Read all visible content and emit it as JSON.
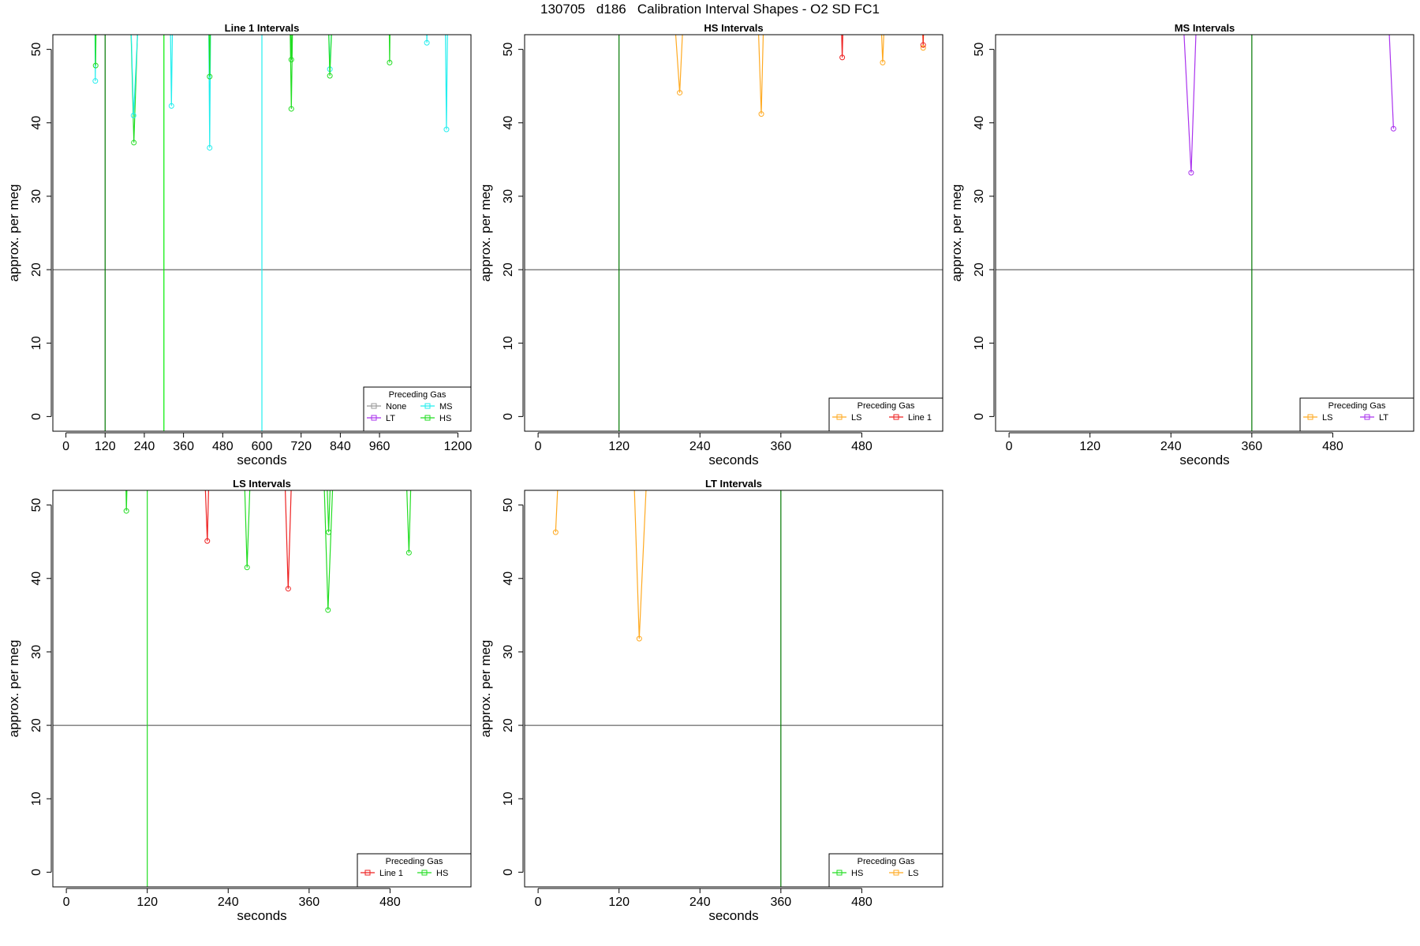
{
  "page_title": "130705   d186   Calibration Interval Shapes - O2 SD FC1",
  "chart_data": [
    {
      "type": "line",
      "title": "Line 1 Intervals",
      "xlabel": "seconds",
      "ylabel": "approx. per meg",
      "xlim": [
        -40,
        1240
      ],
      "ylim": [
        -2,
        52
      ],
      "xticks": [
        0,
        120,
        240,
        360,
        480,
        600,
        720,
        840,
        960,
        1200
      ],
      "yticks": [
        0,
        10,
        20,
        30,
        40,
        50
      ],
      "hline": 20,
      "vlines": [
        {
          "x": 120,
          "color": "#007700"
        },
        {
          "x": 300,
          "color": "#00ee00"
        },
        {
          "x": 600,
          "color": "#22eeee"
        }
      ],
      "legend": {
        "title": "Preceding Gas",
        "position": "bottom-right",
        "columns": 2,
        "entries": [
          {
            "name": "None",
            "color": "#999999"
          },
          {
            "name": "MS",
            "color": "#22eeee"
          },
          {
            "name": "LT",
            "color": "#aa33ee"
          },
          {
            "name": "HS",
            "color": "#22dd22"
          }
        ]
      },
      "series": [
        {
          "name": "MS",
          "color": "#22eeee",
          "points": [
            [
              88,
              60
            ],
            [
              90,
              45.7
            ],
            [
              92,
              60
            ]
          ]
        },
        {
          "name": "HS",
          "color": "#22dd22",
          "points": [
            [
              88,
              60
            ],
            [
              91,
              47.8
            ],
            [
              94,
              60
            ]
          ]
        },
        {
          "name": "HS",
          "color": "#22dd22",
          "points": [
            [
              195,
              60
            ],
            [
              208,
              37.3
            ],
            [
              225,
              60
            ]
          ]
        },
        {
          "name": "MS",
          "color": "#22eeee",
          "points": [
            [
              195,
              60
            ],
            [
              207,
              41
            ],
            [
              228,
              60
            ]
          ]
        },
        {
          "name": "MS",
          "color": "#22eeee",
          "points": [
            [
              318,
              60
            ],
            [
              323,
              42.3
            ],
            [
              328,
              60
            ]
          ]
        },
        {
          "name": "MS",
          "color": "#22eeee",
          "points": [
            [
              436,
              60
            ],
            [
              440,
              36.6
            ],
            [
              444,
              60
            ]
          ]
        },
        {
          "name": "HS",
          "color": "#22dd22",
          "points": [
            [
              436,
              60
            ],
            [
              440,
              46.3
            ],
            [
              444,
              60
            ]
          ]
        },
        {
          "name": "HS",
          "color": "#22dd22",
          "points": [
            [
              684,
              60
            ],
            [
              690,
              41.9
            ],
            [
              696,
              60
            ]
          ]
        },
        {
          "name": "HS",
          "color": "#22dd22",
          "points": [
            [
              684,
              60
            ],
            [
              690,
              48.6
            ],
            [
              696,
              60
            ]
          ]
        },
        {
          "name": "MS",
          "color": "#22eeee",
          "points": [
            [
              800,
              60
            ],
            [
              808,
              47.3
            ],
            [
              820,
              60
            ]
          ]
        },
        {
          "name": "HS",
          "color": "#22dd22",
          "points": [
            [
              800,
              60
            ],
            [
              808,
              46.4
            ],
            [
              820,
              60
            ]
          ]
        },
        {
          "name": "HS",
          "color": "#22dd22",
          "points": [
            [
              988,
              60
            ],
            [
              991,
              48.2
            ],
            [
              994,
              60
            ]
          ]
        },
        {
          "name": "MS",
          "color": "#22eeee",
          "points": [
            [
              1102,
              60
            ],
            [
              1105,
              50.9
            ],
            [
              1108,
              60
            ]
          ]
        },
        {
          "name": "MS",
          "color": "#22eeee",
          "points": [
            [
              1160,
              60
            ],
            [
              1165,
              39.1
            ],
            [
              1170,
              60
            ]
          ]
        }
      ]
    },
    {
      "type": "line",
      "title": "HS Intervals",
      "xlabel": "seconds",
      "ylabel": "approx. per meg",
      "xlim": [
        -20,
        600
      ],
      "ylim": [
        -2,
        52
      ],
      "xticks": [
        0,
        120,
        240,
        360,
        480
      ],
      "yticks": [
        0,
        10,
        20,
        30,
        40,
        50
      ],
      "hline": 20,
      "vlines": [
        {
          "x": 120,
          "color": "#007700"
        }
      ],
      "legend": {
        "title": "Preceding Gas",
        "position": "bottom-right",
        "columns": 2,
        "entries": [
          {
            "name": "LS",
            "color": "#ffaa22"
          },
          {
            "name": "Line 1",
            "color": "#ee2222"
          }
        ]
      },
      "series": [
        {
          "name": "LS",
          "color": "#ffaa22",
          "points": [
            [
              198,
              60
            ],
            [
              210,
              44.1
            ],
            [
              218,
              60
            ]
          ]
        },
        {
          "name": "LS",
          "color": "#ffaa22",
          "points": [
            [
              324,
              60
            ],
            [
              331,
              41.2
            ],
            [
              336,
              60
            ]
          ]
        },
        {
          "name": "Line 1",
          "color": "#ee2222",
          "points": [
            [
              448,
              60
            ],
            [
              451,
              48.9
            ],
            [
              454,
              60
            ]
          ]
        },
        {
          "name": "LS",
          "color": "#ffaa22",
          "points": [
            [
              506,
              60
            ],
            [
              511,
              48.2
            ],
            [
              516,
              60
            ]
          ]
        },
        {
          "name": "LS",
          "color": "#ffaa22",
          "points": [
            [
              568,
              60
            ],
            [
              571,
              50.2
            ],
            [
              574,
              60
            ]
          ]
        },
        {
          "name": "Line 1",
          "color": "#ee2222",
          "points": [
            [
              569,
              60
            ],
            [
              571,
              50.6
            ],
            [
              573,
              60
            ]
          ]
        }
      ]
    },
    {
      "type": "line",
      "title": "MS Intervals",
      "xlabel": "seconds",
      "ylabel": "approx. per meg",
      "xlim": [
        -20,
        600
      ],
      "ylim": [
        -2,
        52
      ],
      "xticks": [
        0,
        120,
        240,
        360,
        480
      ],
      "yticks": [
        0,
        10,
        20,
        30,
        40,
        50
      ],
      "hline": 20,
      "vlines": [
        {
          "x": 360,
          "color": "#007700"
        }
      ],
      "legend": {
        "title": "Preceding Gas",
        "position": "bottom-right",
        "columns": 2,
        "entries": [
          {
            "name": "LS",
            "color": "#ffaa22"
          },
          {
            "name": "LT",
            "color": "#aa33ee"
          }
        ]
      },
      "series": [
        {
          "name": "LT",
          "color": "#aa33ee",
          "points": [
            [
              255,
              60
            ],
            [
              270,
              33.2
            ],
            [
              280,
              60
            ]
          ]
        },
        {
          "name": "LT",
          "color": "#aa33ee",
          "points": [
            [
              560,
              60
            ],
            [
              570,
              39.2
            ]
          ]
        }
      ]
    },
    {
      "type": "line",
      "title": "LS Intervals",
      "xlabel": "seconds",
      "ylabel": "approx. per meg",
      "xlim": [
        -20,
        600
      ],
      "ylim": [
        -2,
        52
      ],
      "xticks": [
        0,
        120,
        240,
        360,
        480
      ],
      "yticks": [
        0,
        10,
        20,
        30,
        40,
        50
      ],
      "hline": 20,
      "vlines": [
        {
          "x": 120,
          "color": "#22dd22"
        }
      ],
      "legend": {
        "title": "Preceding Gas",
        "position": "bottom-right",
        "columns": 2,
        "entries": [
          {
            "name": "Line 1",
            "color": "#ee2222"
          },
          {
            "name": "HS",
            "color": "#22dd22"
          }
        ]
      },
      "series": [
        {
          "name": "HS",
          "color": "#22dd22",
          "points": [
            [
              87,
              60
            ],
            [
              89,
              49.2
            ],
            [
              92,
              60
            ]
          ]
        },
        {
          "name": "Line 1",
          "color": "#ee2222",
          "points": [
            [
              203,
              60
            ],
            [
              209,
              45.1
            ],
            [
              213,
              60
            ]
          ]
        },
        {
          "name": "HS",
          "color": "#22dd22",
          "points": [
            [
              262,
              60
            ],
            [
              268,
              41.5
            ],
            [
              275,
              60
            ]
          ]
        },
        {
          "name": "Line 1",
          "color": "#ee2222",
          "points": [
            [
              322,
              60
            ],
            [
              329,
              38.6
            ],
            [
              336,
              60
            ]
          ]
        },
        {
          "name": "HS",
          "color": "#22dd22",
          "points": [
            [
              380,
              60
            ],
            [
              388,
              35.7
            ],
            [
              398,
              60
            ]
          ]
        },
        {
          "name": "HS",
          "color": "#22dd22",
          "points": [
            [
              384,
              60
            ],
            [
              389,
              46.3
            ],
            [
              394,
              60
            ]
          ]
        },
        {
          "name": "HS",
          "color": "#22dd22",
          "points": [
            [
              502,
              60
            ],
            [
              508,
              43.5
            ],
            [
              513,
              60
            ]
          ]
        }
      ]
    },
    {
      "type": "line",
      "title": "LT Intervals",
      "xlabel": "seconds",
      "ylabel": "approx. per meg",
      "xlim": [
        -20,
        600
      ],
      "ylim": [
        -2,
        52
      ],
      "xticks": [
        0,
        120,
        240,
        360,
        480
      ],
      "yticks": [
        0,
        10,
        20,
        30,
        40,
        50
      ],
      "hline": 20,
      "vlines": [
        {
          "x": 360,
          "color": "#007700"
        }
      ],
      "legend": {
        "title": "Preceding Gas",
        "position": "bottom-right",
        "columns": 2,
        "entries": [
          {
            "name": "HS",
            "color": "#22dd22"
          },
          {
            "name": "LS",
            "color": "#ffaa22"
          }
        ]
      },
      "series": [
        {
          "name": "LS",
          "color": "#ffaa22",
          "points": [
            [
              26,
              46.3
            ],
            [
              33,
              60
            ]
          ]
        },
        {
          "name": "LS",
          "color": "#ffaa22",
          "points": [
            [
              140,
              60
            ],
            [
              150,
              31.8
            ],
            [
              164,
              60
            ]
          ]
        }
      ]
    }
  ]
}
